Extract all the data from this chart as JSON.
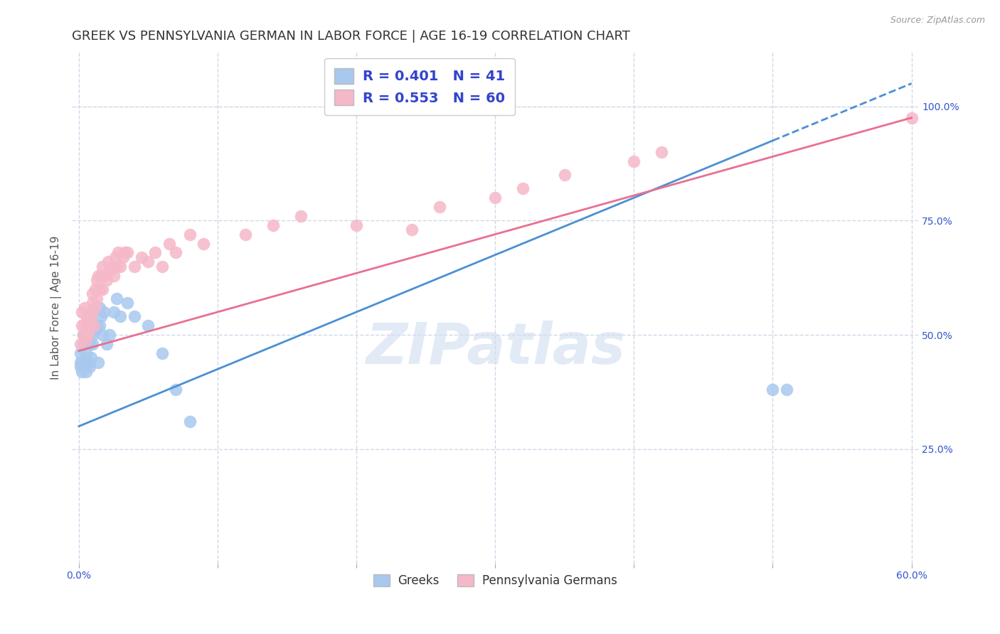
{
  "title": "GREEK VS PENNSYLVANIA GERMAN IN LABOR FORCE | AGE 16-19 CORRELATION CHART",
  "source": "Source: ZipAtlas.com",
  "ylabel": "In Labor Force | Age 16-19",
  "xlim": [
    -0.005,
    0.605
  ],
  "ylim": [
    0.0,
    1.12
  ],
  "xtick_labels": [
    "0.0%",
    "",
    "",
    "",
    "",
    "",
    "60.0%"
  ],
  "xtick_values": [
    0.0,
    0.1,
    0.2,
    0.3,
    0.4,
    0.5,
    0.6
  ],
  "ytick_labels": [
    "25.0%",
    "50.0%",
    "75.0%",
    "100.0%"
  ],
  "ytick_values": [
    0.25,
    0.5,
    0.75,
    1.0
  ],
  "watermark": "ZIPatlas",
  "greek_color": "#a8c8ee",
  "penn_color": "#f5b8c8",
  "greek_line_color": "#4a90d4",
  "penn_line_color": "#e87090",
  "greek_R": 0.401,
  "greek_N": 41,
  "penn_R": 0.553,
  "penn_N": 60,
  "legend_text_color": "#3344cc",
  "greek_line_x0": 0.0,
  "greek_line_y0": 0.3,
  "greek_line_x1": 0.6,
  "greek_line_y1": 1.05,
  "greek_line_dashed_start": 0.5,
  "penn_line_x0": 0.0,
  "penn_line_y0": 0.465,
  "penn_line_x1": 0.6,
  "penn_line_y1": 0.975,
  "bg_color": "#ffffff",
  "grid_color": "#d0d8e8",
  "title_fontsize": 13,
  "label_fontsize": 11,
  "tick_fontsize": 10,
  "greek_scatter_x": [
    0.001,
    0.001,
    0.001,
    0.002,
    0.002,
    0.003,
    0.003,
    0.004,
    0.004,
    0.005,
    0.005,
    0.005,
    0.006,
    0.007,
    0.008,
    0.008,
    0.009,
    0.01,
    0.01,
    0.01,
    0.012,
    0.013,
    0.014,
    0.015,
    0.015,
    0.016,
    0.017,
    0.018,
    0.02,
    0.022,
    0.025,
    0.027,
    0.03,
    0.035,
    0.04,
    0.05,
    0.06,
    0.07,
    0.08,
    0.5,
    0.51
  ],
  "greek_scatter_y": [
    0.43,
    0.44,
    0.46,
    0.42,
    0.44,
    0.48,
    0.5,
    0.44,
    0.5,
    0.42,
    0.44,
    0.46,
    0.5,
    0.44,
    0.43,
    0.48,
    0.45,
    0.5,
    0.52,
    0.48,
    0.51,
    0.52,
    0.44,
    0.56,
    0.52,
    0.54,
    0.5,
    0.55,
    0.48,
    0.5,
    0.55,
    0.58,
    0.54,
    0.57,
    0.54,
    0.52,
    0.46,
    0.38,
    0.31,
    0.38,
    0.38
  ],
  "penn_scatter_x": [
    0.001,
    0.002,
    0.002,
    0.003,
    0.004,
    0.004,
    0.005,
    0.005,
    0.006,
    0.006,
    0.007,
    0.008,
    0.008,
    0.009,
    0.01,
    0.01,
    0.011,
    0.012,
    0.012,
    0.013,
    0.013,
    0.014,
    0.015,
    0.016,
    0.017,
    0.017,
    0.018,
    0.02,
    0.021,
    0.022,
    0.024,
    0.025,
    0.026,
    0.027,
    0.028,
    0.03,
    0.032,
    0.033,
    0.035,
    0.04,
    0.045,
    0.05,
    0.055,
    0.06,
    0.065,
    0.07,
    0.08,
    0.09,
    0.12,
    0.14,
    0.16,
    0.2,
    0.24,
    0.26,
    0.3,
    0.32,
    0.35,
    0.4,
    0.42,
    0.6
  ],
  "penn_scatter_y": [
    0.48,
    0.52,
    0.55,
    0.5,
    0.52,
    0.56,
    0.49,
    0.54,
    0.5,
    0.53,
    0.51,
    0.53,
    0.55,
    0.54,
    0.57,
    0.59,
    0.52,
    0.56,
    0.6,
    0.58,
    0.62,
    0.63,
    0.6,
    0.63,
    0.6,
    0.65,
    0.63,
    0.62,
    0.66,
    0.64,
    0.65,
    0.63,
    0.67,
    0.65,
    0.68,
    0.65,
    0.67,
    0.68,
    0.68,
    0.65,
    0.67,
    0.66,
    0.68,
    0.65,
    0.7,
    0.68,
    0.72,
    0.7,
    0.72,
    0.74,
    0.76,
    0.74,
    0.73,
    0.78,
    0.8,
    0.82,
    0.85,
    0.88,
    0.9,
    0.975
  ]
}
